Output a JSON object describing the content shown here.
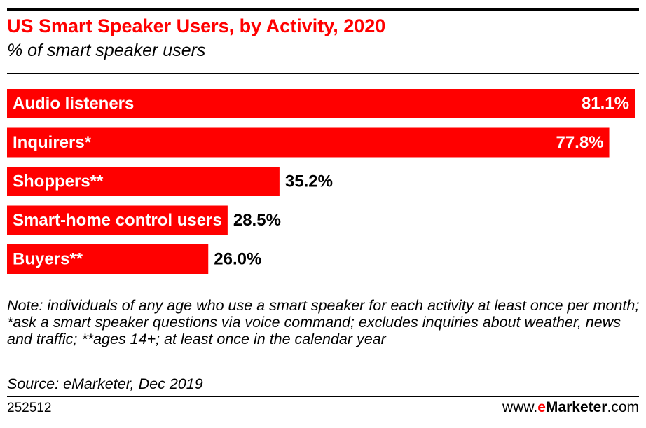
{
  "header": {
    "title": "US Smart Speaker Users, by Activity, 2020",
    "subtitle": "% of smart speaker users"
  },
  "chart_data": {
    "type": "bar",
    "orientation": "horizontal",
    "categories": [
      "Audio listeners",
      "Inquirers*",
      "Shoppers**",
      "Smart-home control users",
      "Buyers**"
    ],
    "values": [
      81.1,
      77.8,
      35.2,
      28.5,
      26.0
    ],
    "value_labels": [
      "81.1%",
      "77.8%",
      "35.2%",
      "28.5%",
      "26.0%"
    ],
    "xlim": [
      0,
      81.1
    ],
    "bar_color": "#ff0000",
    "grid": false,
    "legend": "none"
  },
  "footer": {
    "note": "Note: individuals of any age who use a smart speaker for each activity at least once per month; *ask a smart speaker questions via voice command; excludes inquiries about weather, news and traffic; **ages 14+; at least once in the calendar year",
    "source": "Source: eMarketer, Dec 2019",
    "chart_id": "252512",
    "brand_prefix": "www.",
    "brand_e": "e",
    "brand_name": "Marketer",
    "brand_suffix": ".com"
  }
}
